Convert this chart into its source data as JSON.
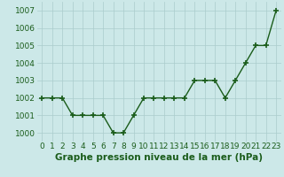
{
  "x": [
    0,
    1,
    2,
    3,
    4,
    5,
    6,
    7,
    8,
    9,
    10,
    11,
    12,
    13,
    14,
    15,
    16,
    17,
    18,
    19,
    20,
    21,
    22,
    23
  ],
  "y": [
    1002,
    1002,
    1002,
    1001,
    1001,
    1001,
    1001,
    1000,
    1000,
    1001,
    1002,
    1002,
    1002,
    1002,
    1002,
    1003,
    1003,
    1003,
    1002,
    1003,
    1004,
    1005,
    1005,
    1007
  ],
  "line_color": "#1a5c1a",
  "marker_color": "#1a5c1a",
  "bg_color": "#cce8e8",
  "grid_color": "#aacccc",
  "xlabel": "Graphe pression niveau de la mer (hPa)",
  "ylim": [
    999.5,
    1007.5
  ],
  "yticks": [
    1000,
    1001,
    1002,
    1003,
    1004,
    1005,
    1006,
    1007
  ],
  "xticks": [
    0,
    1,
    2,
    3,
    4,
    5,
    6,
    7,
    8,
    9,
    10,
    11,
    12,
    13,
    14,
    15,
    16,
    17,
    18,
    19,
    20,
    21,
    22,
    23
  ],
  "xlabel_fontsize": 7.5,
  "tick_fontsize": 6.5,
  "line_width": 1.0,
  "marker_size": 4
}
